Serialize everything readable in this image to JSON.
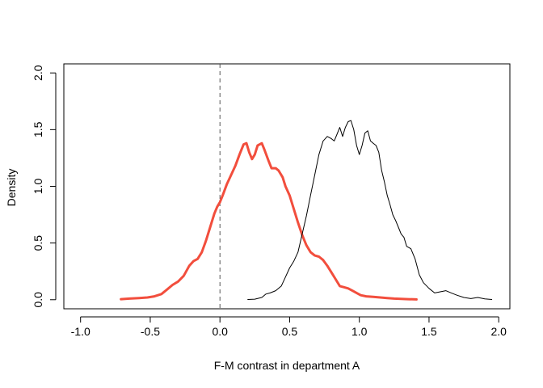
{
  "chart_data": {
    "type": "line",
    "title": "",
    "xlabel": "F-M contrast in department A",
    "ylabel": "Density",
    "xlim": [
      -1.12,
      2.08
    ],
    "ylim": [
      -0.08,
      2.08
    ],
    "x_ticks": [
      -1.0,
      -0.5,
      0.0,
      0.5,
      1.0,
      1.5,
      2.0
    ],
    "x_tick_labels": [
      "-1.0",
      "-0.5",
      "0.0",
      "0.5",
      "1.0",
      "1.5",
      "2.0"
    ],
    "y_ticks": [
      0.0,
      0.5,
      1.0,
      1.5,
      2.0
    ],
    "y_tick_labels": [
      "0.0",
      "0.5",
      "1.0",
      "1.5",
      "2.0"
    ],
    "grid": false,
    "legend": "none",
    "reference_line": {
      "x": 0.0,
      "style": "dashed",
      "color": "#555555"
    },
    "series": [
      {
        "color": "#f24e3d",
        "line_weight": "thick",
        "x": [
          -0.71,
          -0.65,
          -0.58,
          -0.52,
          -0.47,
          -0.42,
          -0.38,
          -0.34,
          -0.3,
          -0.26,
          -0.22,
          -0.19,
          -0.16,
          -0.13,
          -0.1,
          -0.07,
          -0.04,
          -0.02,
          0.0,
          0.02,
          0.05,
          0.08,
          0.11,
          0.14,
          0.17,
          0.19,
          0.21,
          0.23,
          0.25,
          0.27,
          0.3,
          0.32,
          0.35,
          0.37,
          0.4,
          0.42,
          0.45,
          0.47,
          0.5,
          0.53,
          0.56,
          0.59,
          0.62,
          0.65,
          0.68,
          0.71,
          0.74,
          0.77,
          0.8,
          0.83,
          0.86,
          0.89,
          0.92,
          0.95,
          0.98,
          1.01,
          1.05,
          1.1,
          1.15,
          1.2,
          1.25,
          1.3,
          1.35,
          1.41
        ],
        "y": [
          0.005,
          0.01,
          0.015,
          0.02,
          0.03,
          0.05,
          0.09,
          0.13,
          0.16,
          0.21,
          0.3,
          0.34,
          0.36,
          0.42,
          0.52,
          0.64,
          0.76,
          0.82,
          0.86,
          0.92,
          1.02,
          1.1,
          1.18,
          1.28,
          1.37,
          1.38,
          1.3,
          1.24,
          1.28,
          1.36,
          1.38,
          1.32,
          1.22,
          1.16,
          1.16,
          1.14,
          1.08,
          1.0,
          0.92,
          0.8,
          0.68,
          0.57,
          0.48,
          0.42,
          0.39,
          0.38,
          0.35,
          0.3,
          0.24,
          0.18,
          0.12,
          0.11,
          0.1,
          0.08,
          0.06,
          0.04,
          0.03,
          0.025,
          0.02,
          0.015,
          0.01,
          0.008,
          0.005,
          0.003
        ]
      },
      {
        "color": "#000000",
        "line_weight": "thin",
        "x": [
          0.2,
          0.25,
          0.3,
          0.33,
          0.36,
          0.4,
          0.44,
          0.47,
          0.5,
          0.53,
          0.56,
          0.59,
          0.62,
          0.65,
          0.68,
          0.71,
          0.74,
          0.77,
          0.8,
          0.82,
          0.84,
          0.86,
          0.88,
          0.9,
          0.92,
          0.94,
          0.96,
          0.98,
          1.0,
          1.02,
          1.04,
          1.06,
          1.08,
          1.1,
          1.12,
          1.14,
          1.16,
          1.18,
          1.2,
          1.22,
          1.24,
          1.26,
          1.28,
          1.3,
          1.32,
          1.34,
          1.37,
          1.4,
          1.43,
          1.46,
          1.5,
          1.54,
          1.58,
          1.62,
          1.66,
          1.7,
          1.75,
          1.8,
          1.85,
          1.9,
          1.95
        ],
        "y": [
          0.002,
          0.005,
          0.02,
          0.05,
          0.06,
          0.08,
          0.12,
          0.2,
          0.28,
          0.34,
          0.42,
          0.58,
          0.74,
          0.92,
          1.1,
          1.28,
          1.4,
          1.44,
          1.42,
          1.4,
          1.46,
          1.52,
          1.44,
          1.52,
          1.57,
          1.58,
          1.5,
          1.36,
          1.28,
          1.36,
          1.47,
          1.49,
          1.4,
          1.38,
          1.36,
          1.3,
          1.14,
          1.04,
          0.92,
          0.84,
          0.75,
          0.7,
          0.64,
          0.58,
          0.55,
          0.47,
          0.45,
          0.36,
          0.22,
          0.15,
          0.1,
          0.06,
          0.07,
          0.08,
          0.06,
          0.04,
          0.02,
          0.01,
          0.02,
          0.008,
          0.002
        ]
      }
    ]
  }
}
